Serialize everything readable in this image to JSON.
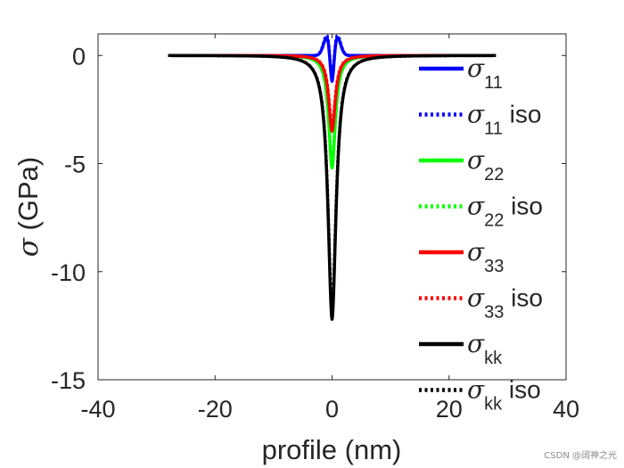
{
  "chart_data": {
    "type": "line",
    "xlabel": "profile (nm)",
    "ylabel_symbol": "σ",
    "ylabel_unit": " (GPa)",
    "xlim": [
      -40,
      40
    ],
    "ylim": [
      -15,
      1
    ],
    "xticks": [
      -40,
      -20,
      0,
      20,
      40
    ],
    "yticks": [
      0,
      -5,
      -10,
      -15
    ],
    "x_tick_labels": [
      "-40",
      "-20",
      "0",
      "20",
      "40"
    ],
    "y_tick_labels": [
      "0",
      "-5",
      "-10",
      "-15"
    ],
    "grid": false,
    "legend_position": "right, inside",
    "x_range_of_data": [
      -28,
      28
    ],
    "series": [
      {
        "name": "σ11",
        "symbol": "σ",
        "sub": "11",
        "suffix": "",
        "color": "#0000ff",
        "style": "solid",
        "peak": 0.9,
        "shape": "signchange"
      },
      {
        "name": "σ11 iso",
        "symbol": "σ",
        "sub": "11",
        "suffix": " iso",
        "color": "#0000ff",
        "style": "dotted",
        "peak": 1.0,
        "shape": "signchange"
      },
      {
        "name": "σ22",
        "symbol": "σ",
        "sub": "22",
        "suffix": "",
        "color": "#00ff00",
        "style": "solid",
        "peak": -5.2,
        "shape": "well"
      },
      {
        "name": "σ22 iso",
        "symbol": "σ",
        "sub": "22",
        "suffix": " iso",
        "color": "#00ff00",
        "style": "dotted",
        "peak": -5.0,
        "shape": "well"
      },
      {
        "name": "σ33",
        "symbol": "σ",
        "sub": "33",
        "suffix": "",
        "color": "#ff0000",
        "style": "solid",
        "peak": -3.5,
        "shape": "well"
      },
      {
        "name": "σ33 iso",
        "symbol": "σ",
        "sub": "33",
        "suffix": " iso",
        "color": "#ff0000",
        "style": "dotted",
        "peak": -3.2,
        "shape": "well"
      },
      {
        "name": "σkk",
        "symbol": "σ",
        "sub": "kk",
        "suffix": "",
        "color": "#000000",
        "style": "solid",
        "peak": -12.2,
        "shape": "well"
      },
      {
        "name": "σkk iso",
        "symbol": "σ",
        "sub": "kk",
        "suffix": " iso",
        "color": "#000000",
        "style": "dotted",
        "peak": -11.8,
        "shape": "well"
      }
    ]
  },
  "watermark": "CSDN @阔神之光"
}
